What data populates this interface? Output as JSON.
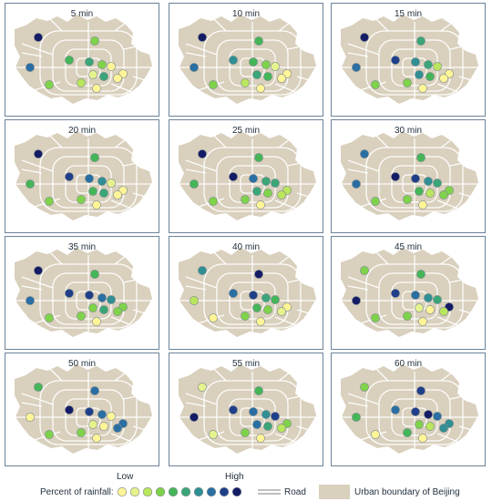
{
  "colors": {
    "boundary_fill": "#d9d0bd",
    "road": "#ffffff",
    "scale": [
      "#fff597",
      "#e6f28c",
      "#b9e65c",
      "#7fd34a",
      "#45b658",
      "#3aa678",
      "#2f8f93",
      "#2a6fa3",
      "#1f3f8a",
      "#141c66"
    ]
  },
  "legend": {
    "title": "Percent of rainfall:",
    "low": "Low",
    "high": "High",
    "road_label": "Road",
    "boundary_label": "Urban boundary of Beijing"
  },
  "station_names": [
    "nw",
    "w",
    "center_n",
    "sw",
    "c1",
    "c2",
    "c3",
    "e1",
    "e2",
    "c4",
    "c5",
    "e3",
    "s1",
    "s2"
  ],
  "panels": [
    {
      "title": "5 min",
      "levels": [
        9,
        7,
        3,
        3,
        4,
        5,
        3,
        0,
        0,
        1,
        5,
        0,
        2,
        0
      ]
    },
    {
      "title": "10 min",
      "levels": [
        9,
        7,
        4,
        3,
        6,
        4,
        3,
        1,
        0,
        5,
        4,
        0,
        2,
        0
      ]
    },
    {
      "title": "15 min",
      "levels": [
        9,
        7,
        5,
        3,
        8,
        6,
        5,
        2,
        0,
        6,
        4,
        0,
        3,
        0
      ]
    },
    {
      "title": "20 min",
      "levels": [
        9,
        4,
        4,
        3,
        8,
        7,
        6,
        1,
        0,
        4,
        5,
        0,
        3,
        0
      ]
    },
    {
      "title": "25 min",
      "levels": [
        9,
        4,
        4,
        3,
        9,
        7,
        5,
        5,
        2,
        5,
        3,
        2,
        3,
        0
      ]
    },
    {
      "title": "30 min",
      "levels": [
        7,
        7,
        4,
        3,
        9,
        8,
        6,
        5,
        3,
        4,
        2,
        3,
        3,
        0
      ]
    },
    {
      "title": "35 min",
      "levels": [
        9,
        7,
        4,
        3,
        8,
        8,
        7,
        6,
        3,
        3,
        5,
        3,
        3,
        0
      ]
    },
    {
      "title": "40 min",
      "levels": [
        6,
        2,
        9,
        0,
        7,
        8,
        5,
        4,
        0,
        4,
        3,
        1,
        3,
        0
      ]
    },
    {
      "title": "45 min",
      "levels": [
        3,
        9,
        4,
        3,
        8,
        7,
        6,
        5,
        9,
        1,
        0,
        2,
        3,
        0
      ]
    },
    {
      "title": "50 min",
      "levels": [
        4,
        0,
        7,
        3,
        9,
        8,
        7,
        0,
        7,
        1,
        0,
        7,
        3,
        0
      ]
    },
    {
      "title": "55 min",
      "levels": [
        1,
        9,
        4,
        1,
        8,
        7,
        6,
        8,
        3,
        7,
        5,
        2,
        3,
        0
      ]
    },
    {
      "title": "60 min",
      "levels": [
        3,
        4,
        8,
        0,
        7,
        8,
        9,
        7,
        6,
        3,
        2,
        6,
        4,
        0
      ]
    }
  ]
}
